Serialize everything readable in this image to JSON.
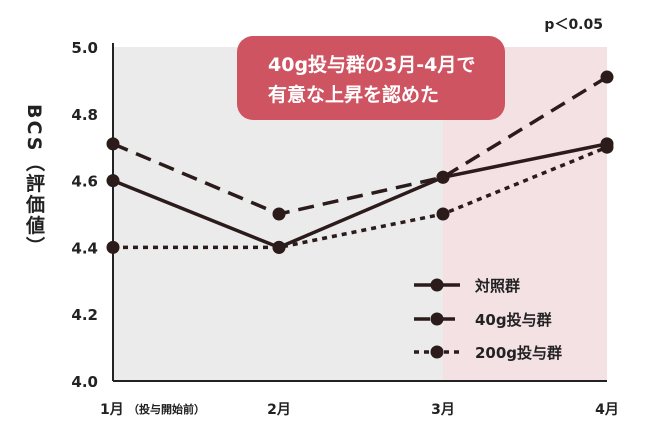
{
  "chart_data": {
    "type": "line",
    "ylabel": "BCS（評価値）",
    "ylim": [
      4.0,
      5.0
    ],
    "yticks": [
      "4.0",
      "4.2",
      "4.4",
      "4.6",
      "4.8",
      "5.0"
    ],
    "categories": [
      "1月",
      "2月",
      "3月",
      "4月"
    ],
    "category_note": "（投与開始前）",
    "series": [
      {
        "name": "対照群",
        "style": "solid",
        "values": [
          4.6,
          4.4,
          4.61,
          4.71
        ]
      },
      {
        "name": "40g投与群",
        "style": "dashed",
        "values": [
          4.71,
          4.5,
          4.61,
          4.91
        ]
      },
      {
        "name": "200g投与群",
        "style": "dotted",
        "values": [
          4.4,
          4.4,
          4.5,
          4.7
        ]
      }
    ],
    "annotation": {
      "line1": "40g投与群の3月-4月で",
      "line2": "有意な上昇を認めた"
    },
    "significance": "p＜0.05",
    "grid": false,
    "legend_position": "bottom-right",
    "colors": {
      "background_left": "#ebebeb",
      "background_highlight": "#f4e1e4",
      "annotation_fill": "#cf5462",
      "line": "#2b1b1b"
    }
  }
}
